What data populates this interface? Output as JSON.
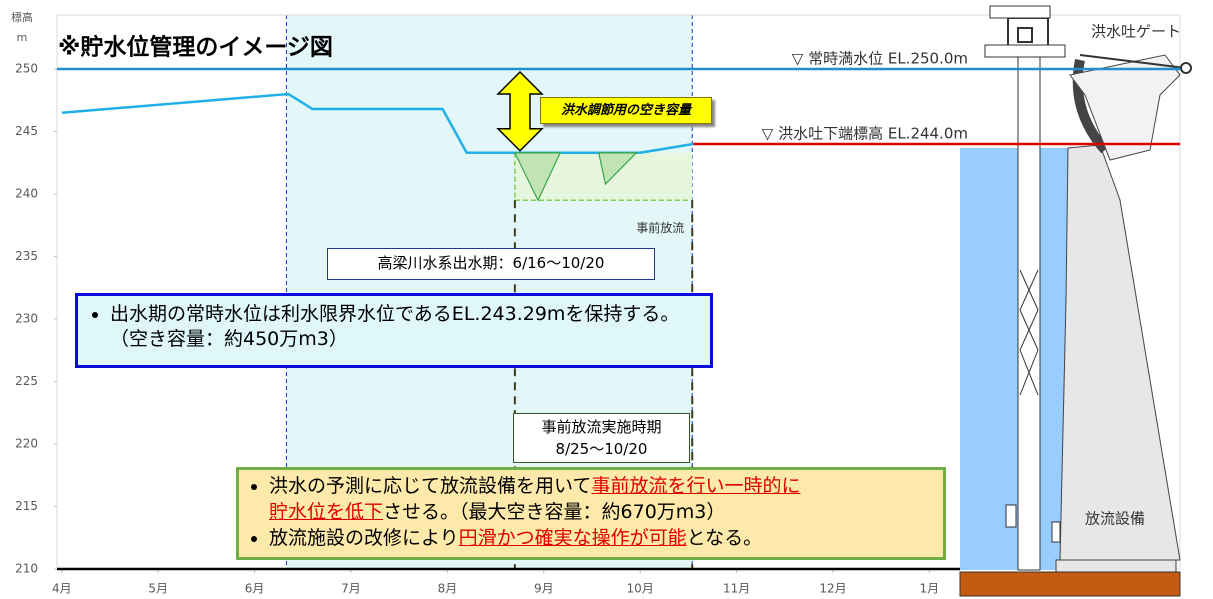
{
  "chart_data": {
    "type": "line",
    "title": "※貯水位管理のイメージ図",
    "y_label": [
      "標高",
      "m"
    ],
    "x": [
      0,
      2.35,
      2.6,
      3.95,
      4.2,
      6.0,
      6.55
    ],
    "values": [
      246.5,
      248.0,
      246.8,
      246.8,
      243.3,
      243.3,
      244.0
    ],
    "color": "#1fb0e8",
    "xlim": [
      -0.05,
      11.6
    ],
    "ylim": [
      210,
      250
    ],
    "xticks": [
      {
        "value": 0,
        "label": "4月"
      },
      {
        "value": 1,
        "label": "5月"
      },
      {
        "value": 2,
        "label": "6月"
      },
      {
        "value": 3,
        "label": "7月"
      },
      {
        "value": 4,
        "label": "8月"
      },
      {
        "value": 5,
        "label": "9月"
      },
      {
        "value": 6,
        "label": "10月"
      },
      {
        "value": 7,
        "label": "11月"
      },
      {
        "value": 8,
        "label": "12月"
      },
      {
        "value": 9,
        "label": "1月"
      }
    ],
    "yticks": [
      210,
      215,
      220,
      225,
      230,
      235,
      240,
      245,
      250
    ],
    "ref_lines": [
      {
        "value": 250,
        "start": -0.05,
        "label": "▽ 常時満水位 EL.250.0m",
        "color": "#1f8fd0"
      },
      {
        "value": 244,
        "start": 6.55,
        "label": "▽ 洪水吐下端標高 EL.244.0m",
        "color": "#e00000"
      }
    ],
    "dips": {
      "color": "#3aa64a",
      "items": [
        {
          "x": [
            4.7,
            4.94,
            5.17
          ],
          "values": [
            243.3,
            239.5,
            243.3
          ]
        },
        {
          "x": [
            5.57,
            5.64,
            5.96
          ],
          "values": [
            243.3,
            240.8,
            243.3
          ]
        }
      ]
    },
    "flood_season": {
      "range": [
        2.33,
        6.54
      ],
      "label": "高梁川水系出水期：6/16〜10/20"
    },
    "pre_release": {
      "range": [
        4.7,
        6.54
      ],
      "level": 239.5,
      "label": "事前放流",
      "period_title": "事前放流実施時期",
      "period": "8/25〜10/20"
    },
    "capacity_label": "洪水調節用の空き容量",
    "gate_label": "洪水吐ゲート",
    "facility_label": "放流設備",
    "note1": [
      "出水期の常時水位は利水限界水位であるEL.243.29mを保持する。（空き容量：約450万m3）"
    ],
    "note2": [
      [
        [
          {
            "text": "洪水の予測に応じて放流設備を用いて"
          },
          {
            "text": "事前放流を行い一時的に",
            "underline": true
          }
        ],
        [
          {
            "text": "貯水位を低下",
            "underline": true
          },
          {
            "text": "させる。（最大空き容量：約670万m3）"
          }
        ]
      ],
      [
        [
          {
            "text": "放流施設の改修により"
          },
          {
            "text": "円滑かつ確実な操作が可能",
            "underline": true
          },
          {
            "text": "となる。"
          }
        ]
      ]
    ]
  }
}
